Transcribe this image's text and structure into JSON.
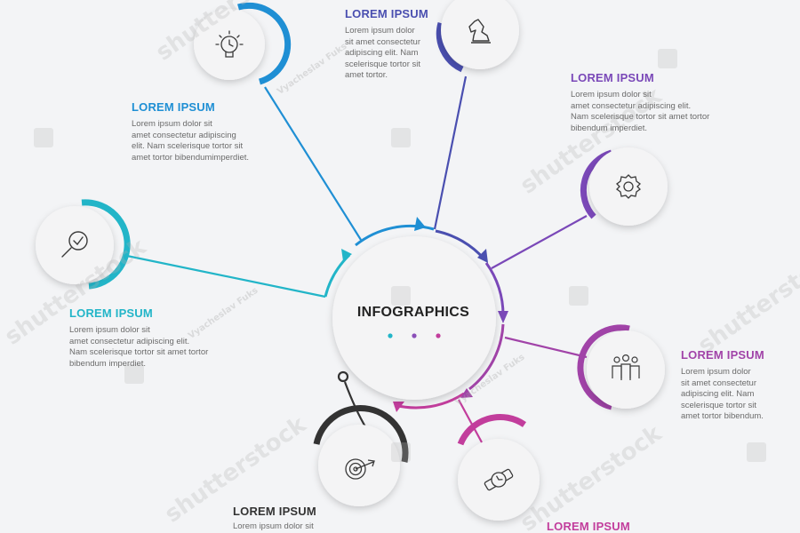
{
  "center": {
    "title": "INFOGRAPHICS",
    "dot_colors": [
      "#22b5c8",
      "#8a4fb8",
      "#c23d9c"
    ]
  },
  "colors": {
    "background": "#f3f4f6",
    "circle_fill": "#f4f4f5",
    "icon_stroke": "#3a3a3a",
    "body_text": "#6b6b6b"
  },
  "options": [
    {
      "id": "idea",
      "title": "LOREM IPSUM",
      "color": "#1f8fd4",
      "icon": "lightbulb-clock-icon",
      "body": "Lorem ipsum dolor sit\namet consectetur adipiscing\nelit. Nam scelerisque tortor sit\namet tortor bibendumimperdiet."
    },
    {
      "id": "strategy",
      "title": "LOREM IPSUM",
      "color": "#4a4fb0",
      "icon": "chess-knight-icon",
      "body": "Lorem ipsum dolor\nsit amet consectetur\nadipiscing elit. Nam\nscelerisque tortor sit\namet tortor."
    },
    {
      "id": "settings",
      "title": "LOREM IPSUM",
      "color": "#7a48b8",
      "icon": "gear-icon",
      "body": "Lorem ipsum dolor sit\namet consectetur adipiscing elit.\nNam scelerisque tortor sit amet tortor\nbibendum imperdiet."
    },
    {
      "id": "team",
      "title": "LOREM IPSUM",
      "color": "#a143a8",
      "icon": "team-icon",
      "body": "Lorem ipsum dolor\nsit amet consectetur\nadipiscing elit. Nam\nscelerisque tortor sit\namet tortor bibendum."
    },
    {
      "id": "time",
      "title": "LOREM IPSUM",
      "color": "#c23d9c",
      "icon": "wristwatch-icon",
      "body": ""
    },
    {
      "id": "target",
      "title": "LOREM IPSUM",
      "color": "#333333",
      "icon": "target-icon",
      "body": "Lorem ipsum dolor sit"
    },
    {
      "id": "search",
      "title": "LOREM IPSUM",
      "color": "#22b5c8",
      "icon": "magnifier-check-icon",
      "body": "Lorem ipsum dolor sit\namet consectetur adipiscing elit.\nNam scelerisque tortor sit amet tortor\nbibendum imperdiet."
    }
  ],
  "watermark": {
    "brand": "shutterstock",
    "author": "Vyacheslav Fuks"
  }
}
